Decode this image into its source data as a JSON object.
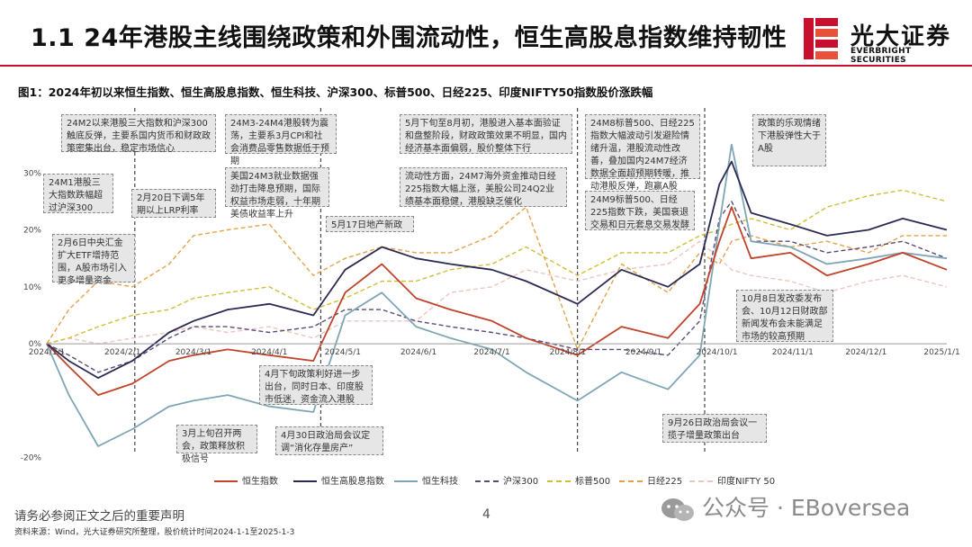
{
  "header": {
    "title": "1.1 24年港股主线围绕政策和外围流动性，恒生高股息指数维持韧性",
    "logo_cn": "光大证券",
    "logo_en": "EVERBRIGHT SECURITIES"
  },
  "figure_title": "图1：2024年初以来恒生指数、恒生高股息指数、恒生科技、沪深300、标普500、日经225、印度NIFTY50指数股价涨跌幅",
  "footer": {
    "notice": "请务必参阅正文之后的重要声明",
    "page_number": "4",
    "source": "资料来源：Wind，光大证券研究所整理，股价统计时间2024-1-1至2025-1-3",
    "watermark": "公众号 · EBoversea"
  },
  "colors": {
    "brand_red": "#c8102e",
    "hsi": "#c0432a",
    "hshdy": "#2b2a52",
    "hstech": "#7fa6b5",
    "csi300": "#5a4a78",
    "spx": "#d1bd38",
    "n225": "#e3a24a",
    "nifty": "#ecc6bd"
  },
  "annotations": [
    {
      "id": "a1",
      "text": "24M2以来港股三大指数和沪深300触底反弹，主要系国内货币和财政政策密集出台，稳定市场信心"
    },
    {
      "id": "a2",
      "text": "24M1港股三大指数跌幅超过沪深300"
    },
    {
      "id": "a3",
      "text": "2月20日下调5年期以上LRP利率"
    },
    {
      "id": "a4",
      "text": "2月6日中央汇金扩大ETF增持范围，A股市场引入更多增量资金"
    },
    {
      "id": "a5",
      "text": "24M3-24M4港股转为震荡，主要系3月CPI和社会消费品零售数据低于预期"
    },
    {
      "id": "a6",
      "text": "美国24M3就业数据强劲打击降息预期，国际权益市场走弱，十年期美债收益率上升"
    },
    {
      "id": "a7",
      "text": "5月17日地产新政"
    },
    {
      "id": "a8",
      "text": "5月下旬至8月初，港股进入基本面验证和盘整阶段，财政政策效果不明显，国内经济基本面偏弱，股价整体下行"
    },
    {
      "id": "a9",
      "text": "流动性方面，24M7海外资金推动日经225指数大幅上涨，美股公司24Q2业绩基本面稳健，港股缺乏催化"
    },
    {
      "id": "a10",
      "text": "24M8标普500、日经225指数大幅波动引发避险情绪升温，港股流动性改善，叠加国内24M7经济数据全面超预期转暖，推动港股反弹，跑赢A股"
    },
    {
      "id": "a11",
      "text": "24M9标普500、日经225指数下跌，美国衰退交易和日元套息交易发酵"
    },
    {
      "id": "a12",
      "text": "政策的乐观情绪下港股弹性大于A股"
    },
    {
      "id": "a13",
      "text": "10月8日发改委发布会、10月12日财政部新闻发布会未能满足市场的较高预期"
    },
    {
      "id": "a14",
      "text": "4月下旬政策利好进一步出台，同时日本、印度股市低迷，资金流入港股"
    },
    {
      "id": "a15",
      "text": "3月上旬召开两会，政策释放积极信号"
    },
    {
      "id": "a16",
      "text": "4月30日政治局会议定调“消化存量房产”"
    },
    {
      "id": "a17",
      "text": "9月26日政治局会议一揽子增量政策出台"
    }
  ],
  "chart_data": {
    "type": "line",
    "title": "",
    "xlabel": "",
    "ylabel": "",
    "x_ticks": [
      "2024-01-01",
      "2024-02-01",
      "2024-03-01",
      "2024-04-01",
      "2024-05-01",
      "2024-06-01",
      "2024-07-01",
      "2024-08-01",
      "2024-09-01",
      "2024-10-01",
      "2024-11-01",
      "2024-12-01",
      "2025-01-01"
    ],
    "x_tick_labels": [
      "2024/1/1",
      "2024/2/1",
      "2024/3/1",
      "2024/4/1",
      "2024/5/1",
      "2024/6/1",
      "2024/7/1",
      "2024/8/1",
      "2024/9/1",
      "2024/10/1",
      "2024/11/1",
      "2024/12/1",
      "2025/1/1"
    ],
    "y_ticks": [
      -20,
      -10,
      0,
      10,
      20,
      30
    ],
    "y_tick_labels": [
      "-20%",
      "",
      "0%",
      "10%",
      "20%",
      "30%"
    ],
    "ylim": [
      -21,
      43
    ],
    "x_range": [
      "2024-01-01",
      "2025-01-03"
    ],
    "legend_position": "bottom",
    "event_lines": [
      "2024-02-06",
      "2024-04-22",
      "2024-08-05",
      "2024-09-26"
    ],
    "series": [
      {
        "name": "恒生指数",
        "style": "solid",
        "x": [
          "2024-01-01",
          "2024-01-10",
          "2024-01-22",
          "2024-02-05",
          "2024-02-20",
          "2024-03-01",
          "2024-03-15",
          "2024-04-01",
          "2024-04-19",
          "2024-05-02",
          "2024-05-17",
          "2024-05-31",
          "2024-06-14",
          "2024-07-01",
          "2024-07-15",
          "2024-08-05",
          "2024-08-23",
          "2024-09-11",
          "2024-09-24",
          "2024-10-02",
          "2024-10-07",
          "2024-10-15",
          "2024-10-31",
          "2024-11-15",
          "2024-12-02",
          "2024-12-16",
          "2025-01-03"
        ],
        "y": [
          0,
          -4,
          -9,
          -7,
          -3,
          -2,
          -1,
          -2,
          -3,
          9,
          14,
          8,
          6,
          4,
          1,
          -2,
          3,
          1,
          7,
          18,
          24,
          15,
          16,
          12,
          14,
          16,
          13
        ]
      },
      {
        "name": "恒生高股息指数",
        "style": "solid",
        "x": [
          "2024-01-01",
          "2024-01-10",
          "2024-01-22",
          "2024-02-05",
          "2024-02-20",
          "2024-03-01",
          "2024-03-15",
          "2024-04-01",
          "2024-04-19",
          "2024-05-02",
          "2024-05-17",
          "2024-05-31",
          "2024-06-14",
          "2024-07-01",
          "2024-07-15",
          "2024-08-05",
          "2024-08-23",
          "2024-09-11",
          "2024-09-24",
          "2024-10-02",
          "2024-10-07",
          "2024-10-15",
          "2024-10-31",
          "2024-11-15",
          "2024-12-02",
          "2024-12-16",
          "2025-01-03"
        ],
        "y": [
          0,
          -3,
          -6,
          -3,
          2,
          4,
          6,
          7,
          5,
          13,
          17,
          15,
          14,
          13,
          11,
          7,
          13,
          10,
          14,
          28,
          32,
          23,
          21,
          19,
          20,
          22,
          20
        ]
      },
      {
        "name": "恒生科技",
        "style": "solid",
        "x": [
          "2024-01-01",
          "2024-01-10",
          "2024-01-22",
          "2024-02-05",
          "2024-02-20",
          "2024-03-01",
          "2024-03-15",
          "2024-04-01",
          "2024-04-19",
          "2024-05-02",
          "2024-05-17",
          "2024-05-31",
          "2024-06-14",
          "2024-07-01",
          "2024-07-15",
          "2024-08-05",
          "2024-08-23",
          "2024-09-11",
          "2024-09-24",
          "2024-10-02",
          "2024-10-07",
          "2024-10-15",
          "2024-10-31",
          "2024-11-15",
          "2024-12-02",
          "2024-12-16",
          "2025-01-03"
        ],
        "y": [
          0,
          -9,
          -18,
          -15,
          -11,
          -10,
          -9,
          -11,
          -12,
          5,
          9,
          3,
          1,
          -1,
          -5,
          -10,
          -5,
          -8,
          -2,
          21,
          35,
          18,
          17,
          14,
          15,
          16,
          15
        ]
      },
      {
        "name": "沪深300",
        "style": "dashed",
        "x": [
          "2024-01-01",
          "2024-01-10",
          "2024-01-22",
          "2024-02-05",
          "2024-02-20",
          "2024-03-01",
          "2024-03-15",
          "2024-04-01",
          "2024-04-19",
          "2024-05-02",
          "2024-05-17",
          "2024-05-31",
          "2024-06-14",
          "2024-07-01",
          "2024-07-15",
          "2024-08-05",
          "2024-08-23",
          "2024-09-11",
          "2024-09-24",
          "2024-10-02",
          "2024-10-07",
          "2024-10-15",
          "2024-10-31",
          "2024-11-15",
          "2024-12-02",
          "2024-12-16",
          "2025-01-03"
        ],
        "y": [
          0,
          -2,
          -5,
          -3,
          1,
          3,
          3,
          2,
          3,
          6,
          6,
          4,
          3,
          2,
          1,
          -1,
          -1,
          -2,
          4,
          22,
          25,
          18,
          18,
          16,
          17,
          18,
          15
        ]
      },
      {
        "name": "标普500",
        "style": "dashed",
        "x": [
          "2024-01-01",
          "2024-01-10",
          "2024-01-22",
          "2024-02-05",
          "2024-02-20",
          "2024-03-01",
          "2024-03-15",
          "2024-04-01",
          "2024-04-19",
          "2024-05-02",
          "2024-05-17",
          "2024-05-31",
          "2024-06-14",
          "2024-07-01",
          "2024-07-15",
          "2024-08-05",
          "2024-08-23",
          "2024-09-11",
          "2024-09-24",
          "2024-10-02",
          "2024-10-07",
          "2024-10-15",
          "2024-10-31",
          "2024-11-15",
          "2024-12-02",
          "2024-12-16",
          "2025-01-03"
        ],
        "y": [
          0,
          1,
          3,
          5,
          6,
          8,
          9,
          10,
          6,
          8,
          11,
          11,
          13,
          14,
          17,
          12,
          16,
          16,
          19,
          20,
          21,
          22,
          20,
          24,
          26,
          27,
          25
        ]
      },
      {
        "name": "日经225",
        "style": "dashed",
        "x": [
          "2024-01-01",
          "2024-01-10",
          "2024-01-22",
          "2024-02-05",
          "2024-02-20",
          "2024-03-01",
          "2024-03-15",
          "2024-04-01",
          "2024-04-19",
          "2024-05-02",
          "2024-05-17",
          "2024-05-31",
          "2024-06-14",
          "2024-07-01",
          "2024-07-15",
          "2024-08-05",
          "2024-08-23",
          "2024-09-11",
          "2024-09-24",
          "2024-10-02",
          "2024-10-07",
          "2024-10-15",
          "2024-10-31",
          "2024-11-15",
          "2024-12-02",
          "2024-12-16",
          "2025-01-03"
        ],
        "y": [
          0,
          6,
          11,
          10,
          14,
          19,
          20,
          21,
          12,
          15,
          17,
          16,
          16,
          19,
          24,
          -1,
          14,
          9,
          16,
          14,
          18,
          19,
          17,
          18,
          16,
          19,
          19
        ]
      },
      {
        "name": "印度NIFTY 50",
        "style": "dashed",
        "x": [
          "2024-01-01",
          "2024-01-10",
          "2024-01-22",
          "2024-02-05",
          "2024-02-20",
          "2024-03-01",
          "2024-03-15",
          "2024-04-01",
          "2024-04-19",
          "2024-05-02",
          "2024-05-17",
          "2024-05-31",
          "2024-06-14",
          "2024-07-01",
          "2024-07-15",
          "2024-08-05",
          "2024-08-23",
          "2024-09-11",
          "2024-09-24",
          "2024-10-02",
          "2024-10-07",
          "2024-10-15",
          "2024-10-31",
          "2024-11-15",
          "2024-12-02",
          "2024-12-16",
          "2025-01-03"
        ],
        "y": [
          0,
          1,
          0,
          1,
          2,
          3,
          2,
          3,
          1,
          4,
          4,
          4,
          9,
          10,
          13,
          11,
          13,
          14,
          18,
          15,
          13,
          12,
          11,
          9,
          11,
          12,
          10
        ]
      }
    ]
  }
}
